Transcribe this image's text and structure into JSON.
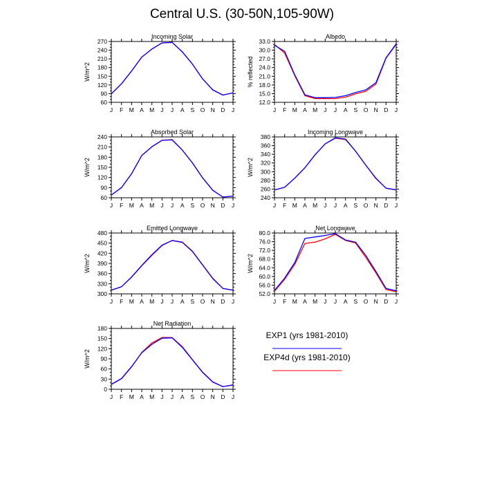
{
  "page_title": "Central U.S. (30-50N,105-90W)",
  "legend": {
    "entries": [
      {
        "label": "EXP1 (yrs 1981-2010)",
        "color": "#0000ff"
      },
      {
        "label": "EXP4d (yrs 1981-2010)",
        "color": "#ff0000"
      }
    ]
  },
  "chart_data": [
    {
      "type": "line",
      "title": "Incoming Solar",
      "ylabel": "W/m^2",
      "categories": [
        "J",
        "F",
        "M",
        "A",
        "M",
        "J",
        "J",
        "A",
        "S",
        "O",
        "N",
        "D",
        "J"
      ],
      "ylim": [
        60,
        270
      ],
      "yticks": [
        60,
        90,
        120,
        150,
        180,
        210,
        240,
        270
      ],
      "ytick_labels": [
        "60",
        "90",
        "120",
        "150",
        "180",
        "210",
        "240",
        "270"
      ],
      "series": [
        {
          "color": "#ff0000",
          "values": [
            89,
            124,
            168,
            216,
            244,
            265,
            267,
            234,
            192,
            141,
            103,
            85,
            93
          ]
        },
        {
          "color": "#0000ff",
          "values": [
            89,
            124,
            168,
            216,
            244,
            265,
            267,
            234,
            192,
            141,
            103,
            85,
            93
          ]
        }
      ]
    },
    {
      "type": "line",
      "title": "Albedo",
      "ylabel": "% reflected",
      "categories": [
        "J",
        "F",
        "M",
        "A",
        "M",
        "J",
        "J",
        "A",
        "S",
        "O",
        "N",
        "D",
        "J"
      ],
      "ylim": [
        12,
        33
      ],
      "yticks": [
        12,
        15,
        18,
        21,
        24,
        27,
        30,
        33
      ],
      "ytick_labels": [
        "12.0",
        "15.0",
        "18.0",
        "21.0",
        "24.0",
        "27.0",
        "30.0",
        "33.0"
      ],
      "series": [
        {
          "color": "#ff0000",
          "values": [
            32.0,
            29.0,
            21.2,
            14.3,
            13.3,
            13.3,
            13.3,
            13.8,
            14.9,
            15.8,
            18.3,
            27.2,
            32.0
          ]
        },
        {
          "color": "#0000ff",
          "values": [
            31.7,
            29.6,
            21.5,
            14.6,
            13.6,
            13.6,
            13.7,
            14.3,
            15.4,
            16.3,
            18.8,
            27.4,
            32.2
          ]
        }
      ]
    },
    {
      "type": "line",
      "title": "Absorbed Solar",
      "ylabel": "W/m^2",
      "categories": [
        "J",
        "F",
        "M",
        "A",
        "M",
        "J",
        "J",
        "A",
        "S",
        "O",
        "N",
        "D",
        "J"
      ],
      "ylim": [
        60,
        240
      ],
      "yticks": [
        60,
        90,
        120,
        150,
        180,
        210,
        240
      ],
      "ytick_labels": [
        "60",
        "90",
        "120",
        "150",
        "180",
        "210",
        "240"
      ],
      "series": [
        {
          "color": "#ff0000",
          "values": [
            68,
            90,
            131,
            185,
            211,
            230,
            232,
            201,
            163,
            119,
            82,
            62,
            65
          ]
        },
        {
          "color": "#0000ff",
          "values": [
            68,
            90,
            131,
            185,
            211,
            230,
            231,
            201,
            163,
            119,
            82,
            62,
            65
          ]
        }
      ]
    },
    {
      "type": "line",
      "title": "Incoming Longwave",
      "ylabel": "W/m^2",
      "categories": [
        "J",
        "F",
        "M",
        "A",
        "M",
        "J",
        "J",
        "A",
        "S",
        "O",
        "N",
        "D",
        "J"
      ],
      "ylim": [
        240,
        380
      ],
      "yticks": [
        240,
        260,
        280,
        300,
        320,
        340,
        360,
        380
      ],
      "ytick_labels": [
        "240",
        "260",
        "280",
        "300",
        "320",
        "340",
        "360",
        "380"
      ],
      "series": [
        {
          "color": "#ff0000",
          "values": [
            258,
            264,
            285,
            309,
            339,
            364,
            377,
            374,
            347,
            315,
            284,
            262,
            258
          ]
        },
        {
          "color": "#0000ff",
          "values": [
            258,
            264,
            285,
            309,
            339,
            364,
            378,
            375,
            347,
            315,
            285,
            262,
            258
          ]
        }
      ]
    },
    {
      "type": "line",
      "title": "Emitted Longwave",
      "ylabel": "W/m^2",
      "categories": [
        "J",
        "F",
        "M",
        "A",
        "M",
        "J",
        "J",
        "A",
        "S",
        "O",
        "N",
        "D",
        "J"
      ],
      "ylim": [
        300,
        480
      ],
      "yticks": [
        300,
        330,
        360,
        390,
        420,
        450,
        480
      ],
      "ytick_labels": [
        "300",
        "330",
        "360",
        "390",
        "420",
        "450",
        "480"
      ],
      "series": [
        {
          "color": "#ff0000",
          "values": [
            311,
            321,
            349,
            383,
            414,
            443,
            458,
            452,
            425,
            385,
            345,
            316,
            311
          ]
        },
        {
          "color": "#0000ff",
          "values": [
            311,
            321,
            350,
            384,
            416,
            444,
            458,
            453,
            426,
            386,
            346,
            316,
            311
          ]
        }
      ]
    },
    {
      "type": "line",
      "title": "Net Longwave",
      "ylabel": "W/m^2",
      "categories": [
        "J",
        "F",
        "M",
        "A",
        "M",
        "J",
        "J",
        "A",
        "S",
        "O",
        "N",
        "D",
        "J"
      ],
      "ylim": [
        52,
        80
      ],
      "yticks": [
        52,
        56,
        60,
        64,
        68,
        72,
        76,
        80
      ],
      "ytick_labels": [
        "52.0",
        "56.0",
        "60.0",
        "64.0",
        "68.0",
        "72.0",
        "76.0",
        "80.0"
      ],
      "series": [
        {
          "color": "#ff0000",
          "values": [
            53.2,
            58.7,
            65.6,
            75.2,
            75.8,
            77.3,
            79.4,
            76.6,
            75.4,
            68.8,
            61.6,
            54.0,
            53.0
          ]
        },
        {
          "color": "#0000ff",
          "values": [
            53.6,
            59.3,
            66.4,
            77.5,
            78.2,
            78.9,
            79.7,
            76.8,
            75.8,
            69.7,
            62.3,
            54.5,
            53.4
          ]
        }
      ]
    },
    {
      "type": "line",
      "title": "Net Radiation",
      "ylabel": "W/m^2",
      "categories": [
        "J",
        "F",
        "M",
        "A",
        "M",
        "J",
        "J",
        "A",
        "S",
        "O",
        "N",
        "D",
        "J"
      ],
      "ylim": [
        0,
        180
      ],
      "yticks": [
        0,
        30,
        60,
        90,
        120,
        150,
        180
      ],
      "ytick_labels": [
        "0",
        "30",
        "60",
        "90",
        "120",
        "150",
        "180"
      ],
      "series": [
        {
          "color": "#ff0000",
          "values": [
            14,
            31,
            66,
            109,
            137,
            153,
            153,
            126,
            88,
            51,
            22,
            8,
            12
          ]
        },
        {
          "color": "#0000ff",
          "values": [
            15,
            32,
            67,
            108,
            133,
            151,
            152,
            124,
            87,
            50,
            21,
            8,
            13
          ]
        }
      ]
    }
  ]
}
